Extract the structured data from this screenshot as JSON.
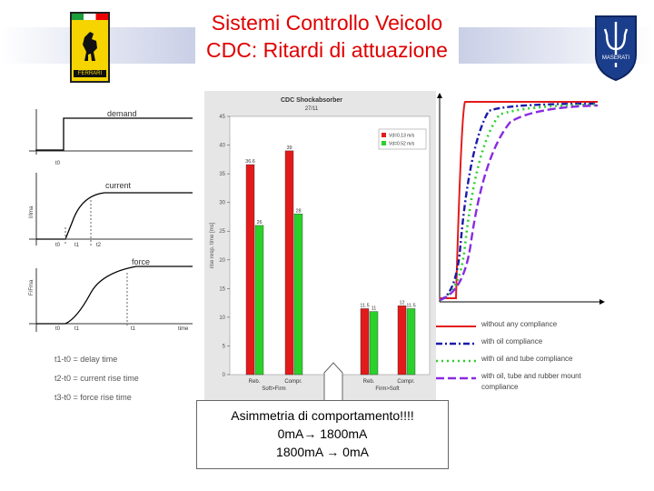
{
  "header": {
    "title_line1": "Sistemi Controllo Veicolo",
    "title_line2": "CDC: Ritardi di attuazione",
    "left_logo": "ferrari-prancing-horse-icon",
    "right_logo": "maserati-trident-icon",
    "maserati_text": "MASERATI",
    "ferrari_text": "FERRARI"
  },
  "timing_diagram": {
    "labels": {
      "demand": "demand",
      "current": "current",
      "force": "force",
      "t0_a": "t0",
      "t0_b": "t0",
      "t1": "t1",
      "t2": "t2",
      "t0_c": "t0",
      "t1_c": "t1",
      "t1_c2": "t1",
      "time": "time",
      "ylabel_a": "I/Ima",
      "ylabel_b": "F/Fma"
    },
    "legend": [
      "t1-t0 = delay time",
      "t2-t0 = current rise time",
      "t3-t0 = force rise time"
    ]
  },
  "chart_data": {
    "type": "bar",
    "title": "CDC Shockabsorber",
    "subtitle": "27/11",
    "ylabel": "rise resp. time [ms]",
    "ylim": [
      0,
      45
    ],
    "yticks": [
      "0",
      "5",
      "10",
      "15",
      "20",
      "25",
      "30",
      "35",
      "40",
      "45"
    ],
    "categories": [
      "Reb.",
      "Compr.",
      "Reb.",
      "Compr."
    ],
    "group_labels": [
      "Soft>Firm",
      "Firm>Soft"
    ],
    "series": [
      {
        "name": "Vd=0.13 m/s",
        "color": "#e31a1a",
        "values": [
          36.6,
          39,
          11.5,
          12
        ]
      },
      {
        "name": "Vd=0.52 m/s",
        "color": "#2bd12b",
        "values": [
          26,
          28,
          11,
          11.5
        ]
      }
    ],
    "data_labels": [
      [
        "36.6",
        "39",
        "11.5",
        "12"
      ],
      [
        "26",
        "28",
        "11",
        "11.5"
      ]
    ]
  },
  "curves": {
    "legend": [
      {
        "label": "without any compliance",
        "color": "#e31a1a",
        "style": "solid"
      },
      {
        "label": "with oil compliance",
        "color": "#1a1aaa",
        "style": "dash-dot"
      },
      {
        "label": "with oil and tube compliance",
        "color": "#2bd12b",
        "style": "dotted"
      },
      {
        "label": "with oil, tube and rubber mount",
        "color": "#8a2be2",
        "style": "dashed"
      },
      {
        "label": "compliance",
        "color": "",
        "style": "none"
      }
    ]
  },
  "note": {
    "line1": "Asimmetria di comportamento!!!!",
    "line2": "0mA→ 1800mA",
    "line3": "1800mA → 0mA"
  }
}
